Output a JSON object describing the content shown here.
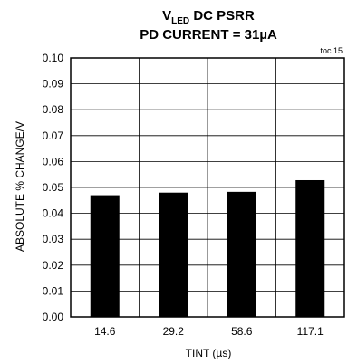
{
  "chart_data": {
    "type": "bar",
    "title_line1_main": "V",
    "title_line1_sub": "LED",
    "title_line1_rest": " DC PSRR",
    "title_line2": "PD CURRENT = 31µA",
    "note": "toc 15",
    "xlabel": "TINT (µs)",
    "ylabel": "ABSOLUTE % CHANGE/V",
    "categories": [
      "14.6",
      "29.2",
      "58.6",
      "117.1"
    ],
    "values": [
      0.047,
      0.048,
      0.0483,
      0.0528
    ],
    "ylim": [
      0,
      0.1
    ],
    "yticks": [
      "0.00",
      "0.01",
      "0.02",
      "0.03",
      "0.04",
      "0.05",
      "0.06",
      "0.07",
      "0.08",
      "0.09",
      "0.10"
    ],
    "grid": true,
    "bar_color": "#000000"
  }
}
